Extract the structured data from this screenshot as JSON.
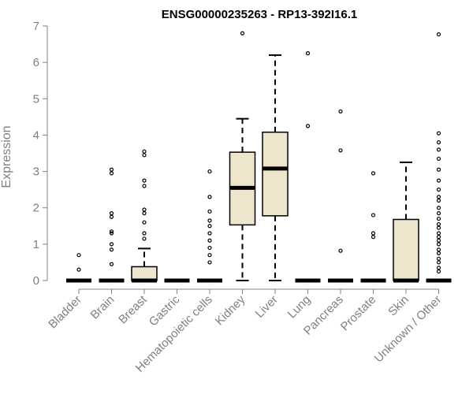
{
  "chart_data": {
    "type": "box",
    "title": "ENSG00000235263 - RP13-392I16.1",
    "xlabel": "",
    "ylabel": "Expression",
    "ylim": [
      0,
      7
    ],
    "yticks": [
      "0",
      "1",
      "2",
      "3",
      "4",
      "5",
      "6",
      "7"
    ],
    "box_fill": "#ede6cd",
    "categories": [
      "Bladder",
      "Brain",
      "Breast",
      "Gastric",
      "Hematopoietic cells",
      "Kidney",
      "Liver",
      "Lung",
      "Pancreas",
      "Prostate",
      "Skin",
      "Unknown / Other"
    ],
    "boxes": [
      {
        "category": "Bladder",
        "min": 0,
        "q1": 0,
        "median": 0,
        "q3": 0,
        "max": 0,
        "outliers": [
          0.3,
          0.7
        ]
      },
      {
        "category": "Brain",
        "min": 0,
        "q1": 0,
        "median": 0,
        "q3": 0,
        "max": 0,
        "outliers": [
          0.45,
          0.85,
          1.0,
          1.3,
          1.35,
          1.75,
          1.85,
          2.95,
          3.05
        ]
      },
      {
        "category": "Breast",
        "min": 0,
        "q1": 0,
        "median": 0,
        "q3": 0.38,
        "max": 0.88,
        "outliers": [
          1.15,
          1.3,
          1.6,
          1.85,
          1.95,
          2.6,
          2.75,
          3.45,
          3.55
        ]
      },
      {
        "category": "Gastric",
        "min": 0,
        "q1": 0,
        "median": 0,
        "q3": 0,
        "max": 0,
        "outliers": []
      },
      {
        "category": "Hematopoietic cells",
        "min": 0,
        "q1": 0,
        "median": 0,
        "q3": 0,
        "max": 0,
        "outliers": [
          0.5,
          0.7,
          0.9,
          1.1,
          1.3,
          1.5,
          1.65,
          1.9,
          2.3,
          3.0
        ]
      },
      {
        "category": "Kidney",
        "min": 0,
        "q1": 1.53,
        "median": 2.55,
        "q3": 3.53,
        "max": 4.45,
        "outliers": [
          6.8
        ]
      },
      {
        "category": "Liver",
        "min": 0,
        "q1": 1.78,
        "median": 3.08,
        "q3": 4.08,
        "max": 6.2,
        "outliers": []
      },
      {
        "category": "Lung",
        "min": 0,
        "q1": 0,
        "median": 0,
        "q3": 0,
        "max": 0,
        "outliers": [
          4.25,
          6.25
        ]
      },
      {
        "category": "Pancreas",
        "min": 0,
        "q1": 0,
        "median": 0,
        "q3": 0,
        "max": 0,
        "outliers": [
          0.82,
          3.58,
          4.65
        ]
      },
      {
        "category": "Prostate",
        "min": 0,
        "q1": 0,
        "median": 0,
        "q3": 0,
        "max": 0,
        "outliers": [
          1.2,
          1.3,
          1.8,
          2.95
        ]
      },
      {
        "category": "Skin",
        "min": 0,
        "q1": 0,
        "median": 0,
        "q3": 1.68,
        "max": 3.25,
        "outliers": []
      },
      {
        "category": "Unknown / Other",
        "min": 0,
        "q1": 0,
        "median": 0,
        "q3": 0,
        "max": 0,
        "outliers": [
          0.25,
          0.35,
          0.5,
          0.6,
          0.75,
          0.85,
          1.0,
          1.1,
          1.2,
          1.3,
          1.45,
          1.55,
          1.7,
          1.85,
          2.0,
          2.2,
          2.3,
          2.5,
          2.75,
          3.05,
          3.35,
          3.6,
          3.8,
          4.05,
          6.77
        ]
      }
    ],
    "grid": false,
    "legend": "none"
  }
}
